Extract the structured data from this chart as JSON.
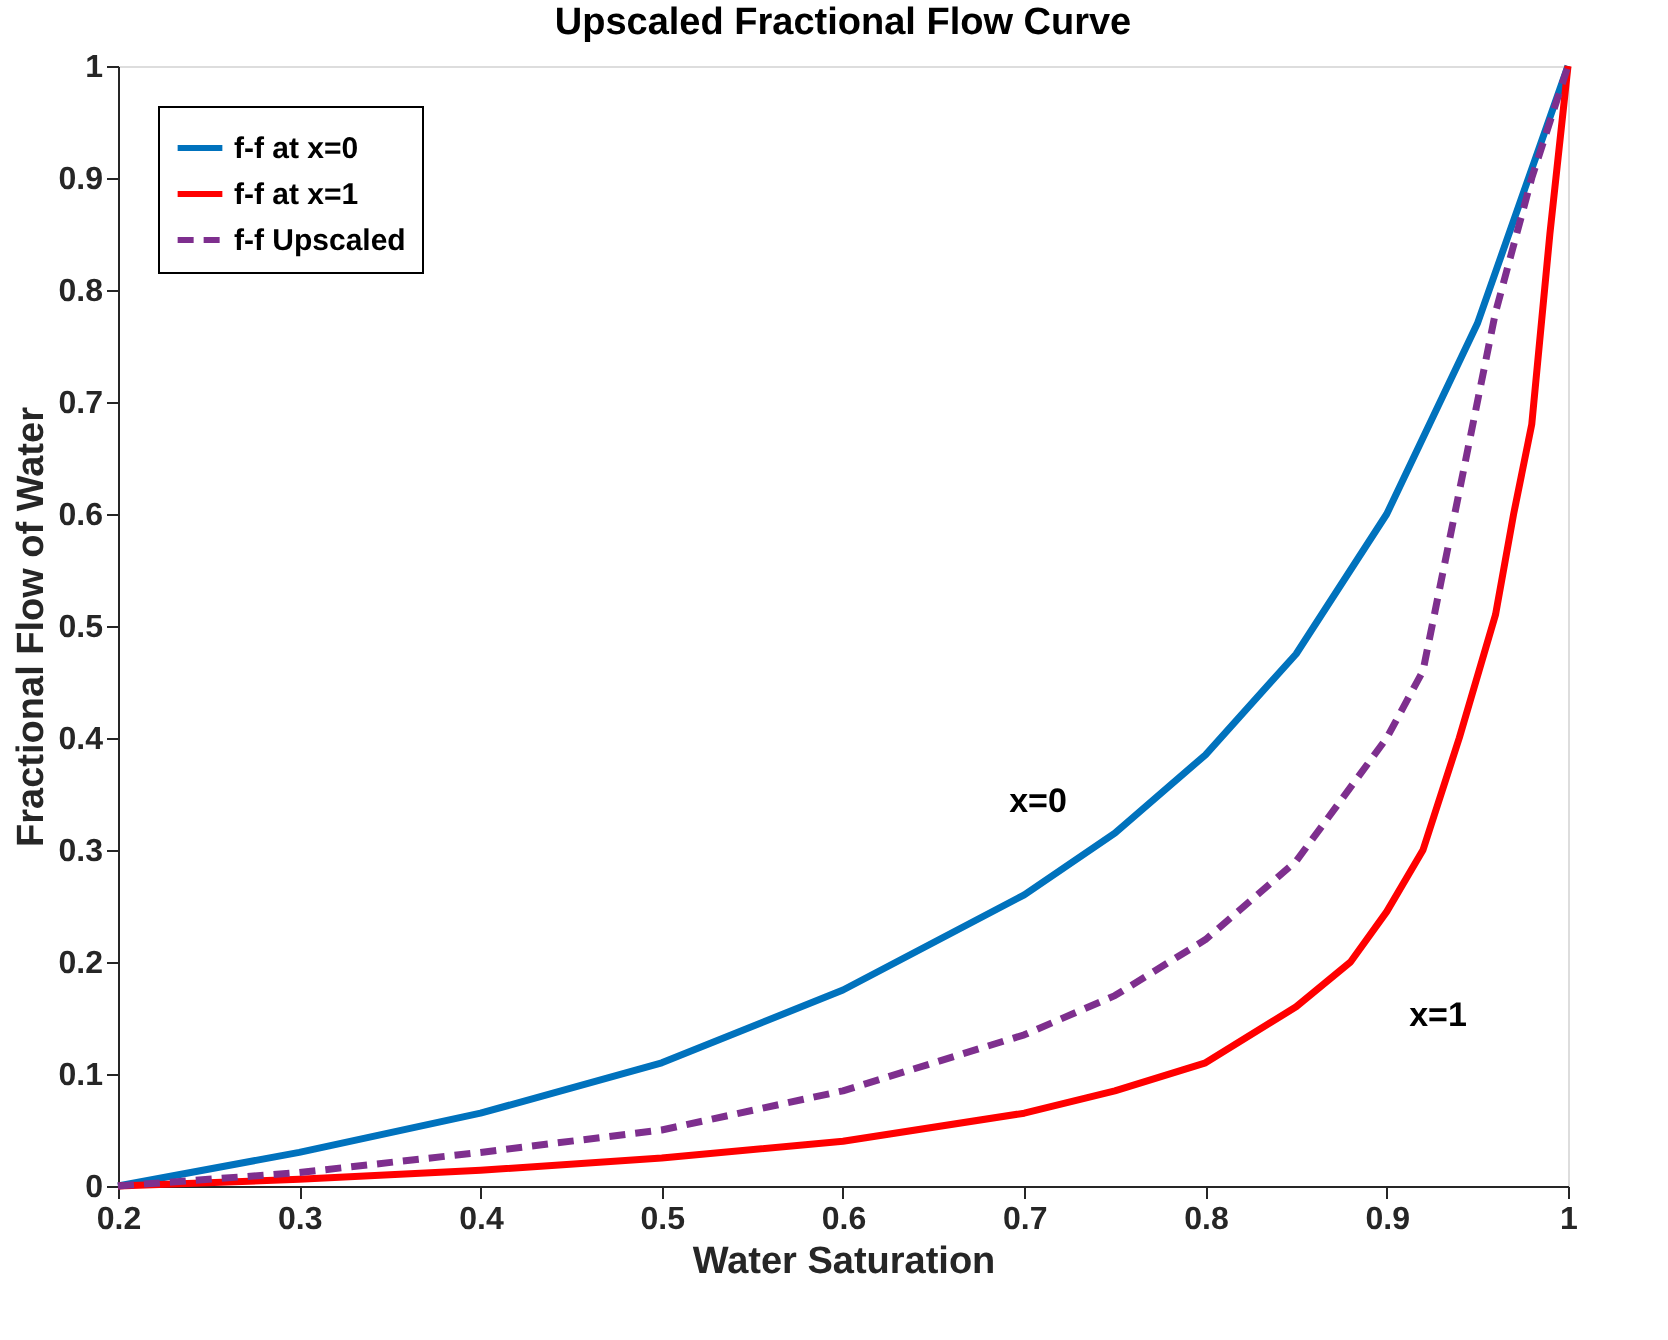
{
  "chart_data": {
    "type": "line",
    "title": "Upscaled Fractional Flow Curve",
    "xlabel": "Water Saturation",
    "ylabel": "Fractional Flow of Water",
    "xlim": [
      0.2,
      1
    ],
    "ylim": [
      0,
      1
    ],
    "xticks": [
      0.2,
      0.3,
      0.4,
      0.5,
      0.6,
      0.7,
      0.8,
      0.9,
      1
    ],
    "yticks": [
      0,
      0.1,
      0.2,
      0.3,
      0.4,
      0.5,
      0.6,
      0.7,
      0.8,
      0.9,
      1
    ],
    "grid": false,
    "legend": "top left",
    "annotations": [
      "x=0",
      "x=1"
    ],
    "series": [
      {
        "name": "f-f at x=0",
        "color": "#0072bd",
        "line_style": "solid",
        "x": [
          0.2,
          0.3,
          0.4,
          0.5,
          0.6,
          0.7,
          0.75,
          0.8,
          0.85,
          0.9,
          0.95,
          1
        ],
        "values": [
          0,
          0.03,
          0.065,
          0.11,
          0.175,
          0.26,
          0.315,
          0.385,
          0.475,
          0.6,
          0.77,
          1
        ]
      },
      {
        "name": "f-f at x=1",
        "color": "#ff0000",
        "line_style": "solid",
        "x": [
          0.2,
          0.3,
          0.4,
          0.5,
          0.6,
          0.7,
          0.75,
          0.8,
          0.85,
          0.88,
          0.9,
          0.92,
          0.94,
          0.96,
          0.97,
          0.98,
          0.99,
          1
        ],
        "values": [
          0,
          0.006,
          0.014,
          0.025,
          0.04,
          0.065,
          0.085,
          0.11,
          0.16,
          0.2,
          0.245,
          0.3,
          0.4,
          0.51,
          0.6,
          0.68,
          0.85,
          1
        ]
      },
      {
        "name": "f-f Upscaled",
        "color": "#7e2f8e",
        "line_style": "dashed",
        "x": [
          0.2,
          0.3,
          0.4,
          0.5,
          0.6,
          0.7,
          0.75,
          0.8,
          0.85,
          0.9,
          0.92,
          0.94,
          0.96,
          0.98,
          1
        ],
        "values": [
          0,
          0.012,
          0.03,
          0.05,
          0.085,
          0.135,
          0.17,
          0.22,
          0.29,
          0.4,
          0.46,
          0.62,
          0.78,
          0.9,
          1
        ]
      }
    ]
  }
}
